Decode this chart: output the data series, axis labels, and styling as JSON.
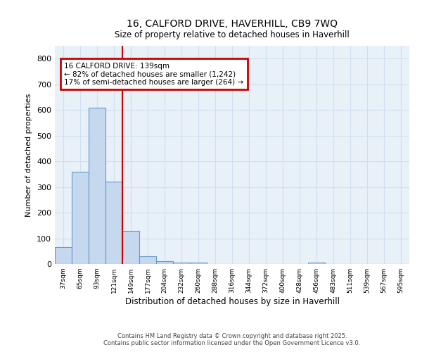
{
  "title1": "16, CALFORD DRIVE, HAVERHILL, CB9 7WQ",
  "title2": "Size of property relative to detached houses in Haverhill",
  "xlabel": "Distribution of detached houses by size in Haverhill",
  "ylabel": "Number of detached properties",
  "bin_labels": [
    "37sqm",
    "65sqm",
    "93sqm",
    "121sqm",
    "149sqm",
    "177sqm",
    "204sqm",
    "232sqm",
    "260sqm",
    "288sqm",
    "316sqm",
    "344sqm",
    "372sqm",
    "400sqm",
    "428sqm",
    "456sqm",
    "483sqm",
    "511sqm",
    "539sqm",
    "567sqm",
    "595sqm"
  ],
  "bin_values": [
    65,
    360,
    610,
    320,
    130,
    30,
    10,
    5,
    5,
    0,
    0,
    0,
    0,
    0,
    0,
    5,
    0,
    0,
    0,
    0,
    0
  ],
  "bar_color": "#c5d8ee",
  "bar_edge_color": "#6699cc",
  "grid_color": "#d0dff0",
  "background_color": "#e8f0f8",
  "annotation_text": "16 CALFORD DRIVE: 139sqm\n← 82% of detached houses are smaller (1,242)\n17% of semi-detached houses are larger (264) →",
  "annotation_box_color": "#ffffff",
  "annotation_border_color": "#cc0000",
  "footer1": "Contains HM Land Registry data © Crown copyright and database right 2025.",
  "footer2": "Contains public sector information licensed under the Open Government Licence v3.0.",
  "ylim": [
    0,
    850
  ],
  "yticks": [
    0,
    100,
    200,
    300,
    400,
    500,
    600,
    700,
    800
  ]
}
